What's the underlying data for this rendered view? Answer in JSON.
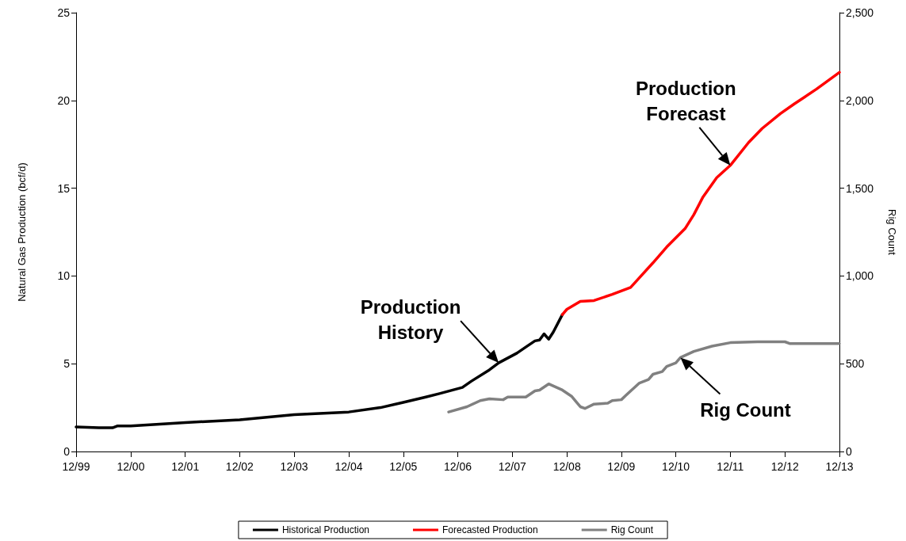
{
  "chart_data": {
    "type": "line",
    "xlabel": null,
    "ylabel": "Natural Gas Production (bcf/d)",
    "y2label": "Rig Count",
    "xlim": [
      "1999-12",
      "2013-12"
    ],
    "xticks": [
      {
        "value": "1999-12",
        "label": "12/99"
      },
      {
        "value": "2000-12",
        "label": "12/00"
      },
      {
        "value": "2001-12",
        "label": "12/01"
      },
      {
        "value": "2002-12",
        "label": "12/02"
      },
      {
        "value": "2003-12",
        "label": "12/03"
      },
      {
        "value": "2004-12",
        "label": "12/04"
      },
      {
        "value": "2005-12",
        "label": "12/05"
      },
      {
        "value": "2006-12",
        "label": "12/06"
      },
      {
        "value": "2007-12",
        "label": "12/07"
      },
      {
        "value": "2008-12",
        "label": "12/08"
      },
      {
        "value": "2009-12",
        "label": "12/09"
      },
      {
        "value": "2010-12",
        "label": "12/10"
      },
      {
        "value": "2011-12",
        "label": "12/11"
      },
      {
        "value": "2012-12",
        "label": "12/12"
      },
      {
        "value": "2013-12",
        "label": "12/13"
      }
    ],
    "ylim": [
      0,
      25
    ],
    "yticks": [
      0,
      5,
      10,
      15,
      20,
      25
    ],
    "y2lim": [
      0,
      2500
    ],
    "y2ticks": [
      0,
      {
        "value": 500,
        "label": "500"
      },
      {
        "value": 1000,
        "label": "1,000"
      },
      {
        "value": 1500,
        "label": "1,500"
      },
      {
        "value": 2000,
        "label": "2,000"
      },
      {
        "value": 2500,
        "label": "2,500"
      }
    ],
    "grid": false,
    "legend": "bottom",
    "marker": "none",
    "line_style": "solid",
    "series": [
      {
        "name": "Historical Production",
        "color": "#000000",
        "x": [
          "1999-12",
          "2000-05",
          "2000-08",
          "2000-09",
          "2000-12",
          "2001-12",
          "2002-12",
          "2003-12",
          "2004-12",
          "2005-07",
          "2005-12",
          "2006-05",
          "2006-08",
          "2007-01",
          "2007-03",
          "2007-07",
          "2007-09",
          "2008-01",
          "2008-03",
          "2008-05",
          "2008-06",
          "2008-07",
          "2008-08",
          "2008-09",
          "2008-11"
        ],
        "values": [
          1.4,
          1.35,
          1.35,
          1.45,
          1.45,
          1.65,
          1.8,
          2.1,
          2.25,
          2.5,
          2.8,
          3.1,
          3.3,
          3.65,
          4.0,
          4.65,
          5.05,
          5.6,
          5.95,
          6.3,
          6.35,
          6.7,
          6.4,
          6.8,
          7.8
        ]
      },
      {
        "name": "Forecasted Production",
        "color": "#ff0000",
        "x": [
          "2008-11",
          "2008-12",
          "2009-03",
          "2009-06",
          "2009-10",
          "2010-02",
          "2010-04",
          "2010-07",
          "2010-10",
          "2011-02",
          "2011-04",
          "2011-06",
          "2011-09",
          "2011-12",
          "2012-04",
          "2012-07",
          "2012-11",
          "2013-02",
          "2013-07",
          "2013-12"
        ],
        "values": [
          7.8,
          8.1,
          8.55,
          8.6,
          8.95,
          9.35,
          9.9,
          10.75,
          11.65,
          12.7,
          13.5,
          14.5,
          15.6,
          16.3,
          17.6,
          18.4,
          19.25,
          19.8,
          20.65,
          21.6
        ]
      },
      {
        "name": "Rig Count",
        "color": "#808080",
        "axis": "y2",
        "x": [
          "2006-10",
          "2007-02",
          "2007-05",
          "2007-07",
          "2007-10",
          "2007-11",
          "2008-03",
          "2008-05",
          "2008-06",
          "2008-08",
          "2008-11",
          "2009-01",
          "2009-03",
          "2009-04",
          "2009-06",
          "2009-09",
          "2009-10",
          "2009-12",
          "2010-01",
          "2010-04",
          "2010-06",
          "2010-07",
          "2010-09",
          "2010-10",
          "2010-12",
          "2011-01",
          "2011-04",
          "2011-08",
          "2011-12",
          "2012-06",
          "2012-09",
          "2012-12",
          "2013-01",
          "2013-12"
        ],
        "values": [
          225,
          255,
          290,
          300,
          295,
          310,
          310,
          345,
          350,
          385,
          350,
          315,
          255,
          245,
          270,
          275,
          290,
          295,
          320,
          390,
          410,
          440,
          455,
          485,
          505,
          535,
          570,
          600,
          620,
          625,
          625,
          625,
          615,
          615
        ]
      }
    ],
    "annotations": [
      {
        "text": "Production History",
        "x": "2007-09",
        "y": 5.05
      },
      {
        "text": "Production Forecast",
        "x": "2011-12",
        "y": 16.3
      },
      {
        "text": "Rig Count",
        "x": "2011-01",
        "y": 5.35
      }
    ]
  }
}
